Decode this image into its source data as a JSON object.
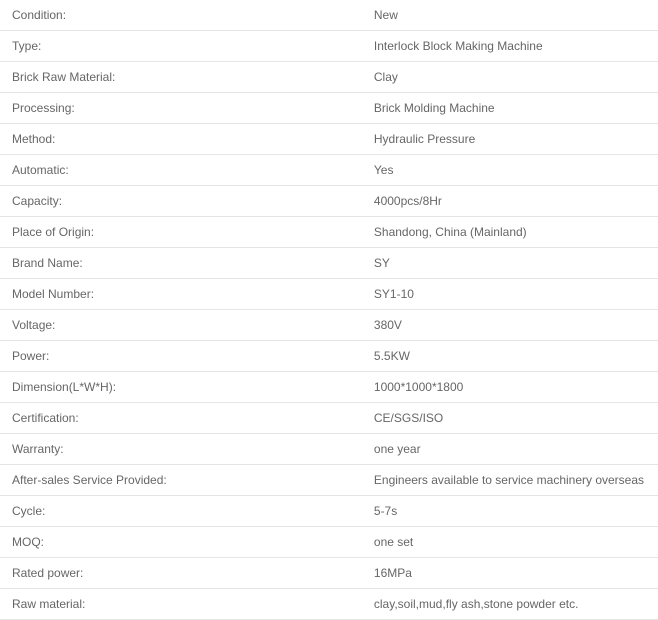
{
  "specifications": {
    "rows": [
      {
        "label": "Condition:",
        "value": "New"
      },
      {
        "label": "Type:",
        "value": "Interlock Block Making Machine"
      },
      {
        "label": "Brick Raw Material:",
        "value": "Clay"
      },
      {
        "label": "Processing:",
        "value": "Brick Molding Machine"
      },
      {
        "label": "Method:",
        "value": "Hydraulic Pressure"
      },
      {
        "label": "Automatic:",
        "value": "Yes"
      },
      {
        "label": "Capacity:",
        "value": "4000pcs/8Hr"
      },
      {
        "label": "Place of Origin:",
        "value": "Shandong, China (Mainland)"
      },
      {
        "label": "Brand Name:",
        "value": "SY"
      },
      {
        "label": "Model Number:",
        "value": "SY1-10"
      },
      {
        "label": "Voltage:",
        "value": "380V"
      },
      {
        "label": "Power:",
        "value": "5.5KW"
      },
      {
        "label": "Dimension(L*W*H):",
        "value": "1000*1000*1800"
      },
      {
        "label": "Certification:",
        "value": "CE/SGS/ISO"
      },
      {
        "label": "Warranty:",
        "value": "one year"
      },
      {
        "label": "After-sales Service Provided:",
        "value": "Engineers available to service machinery overseas"
      },
      {
        "label": "Cycle:",
        "value": "5-7s"
      },
      {
        "label": "MOQ:",
        "value": "one set"
      },
      {
        "label": "Rated power:",
        "value": "16MPa"
      },
      {
        "label": "Raw material:",
        "value": "clay,soil,mud,fly ash,stone powder etc."
      }
    ],
    "styling": {
      "text_color": "#666666",
      "border_color": "#e5e5e5",
      "font_size": 12,
      "row_padding": "8px 12px",
      "background_color": "#ffffff"
    }
  }
}
